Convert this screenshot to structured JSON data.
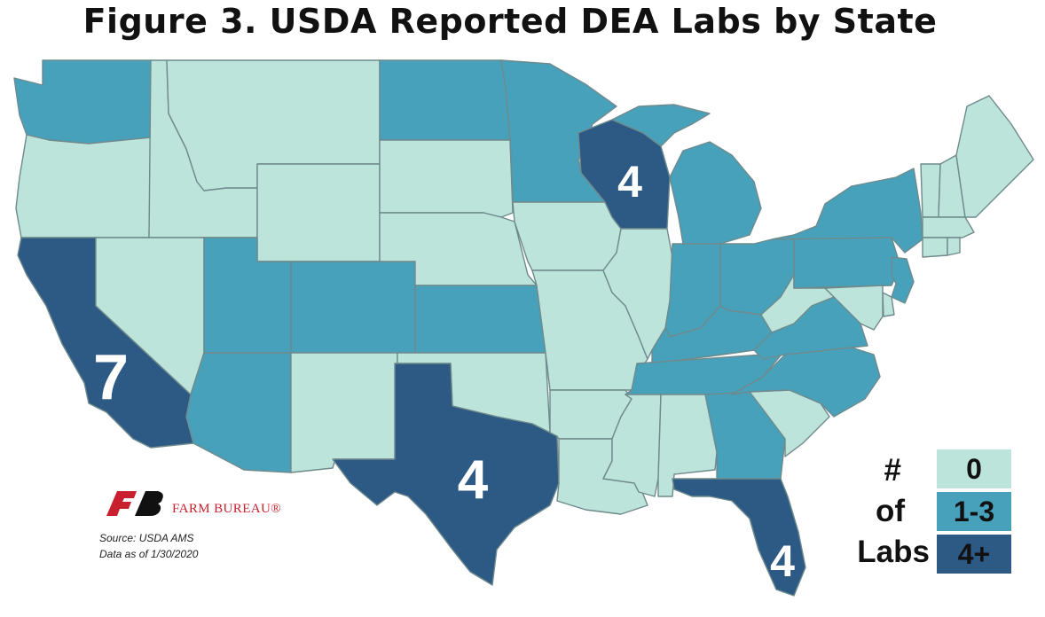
{
  "title": "Figure 3. USDA Reported DEA Labs by State",
  "colors": {
    "zero": "#bde4da",
    "one_to_three": "#47a1bb",
    "four_plus": "#2d5985",
    "border": "#6f8a8c"
  },
  "legend": {
    "title_lines": [
      "#",
      "of",
      "Labs"
    ],
    "bins": [
      {
        "label": "0",
        "category": "zero"
      },
      {
        "label": "1-3",
        "category": "one_to_three"
      },
      {
        "label": "4+",
        "category": "four_plus"
      }
    ]
  },
  "state_categories": {
    "WA": "one_to_three",
    "OR": "zero",
    "CA": "four_plus",
    "ID": "zero",
    "NV": "zero",
    "MT": "zero",
    "WY": "zero",
    "UT": "one_to_three",
    "AZ": "one_to_three",
    "CO": "one_to_three",
    "NM": "zero",
    "ND": "one_to_three",
    "SD": "zero",
    "NE": "zero",
    "KS": "one_to_three",
    "OK": "zero",
    "TX": "four_plus",
    "MN": "one_to_three",
    "IA": "zero",
    "MO": "zero",
    "AR": "zero",
    "LA": "zero",
    "WI": "four_plus",
    "IL": "zero",
    "MI": "one_to_three",
    "IN": "one_to_three",
    "OH": "one_to_three",
    "KY": "one_to_three",
    "TN": "one_to_three",
    "MS": "zero",
    "AL": "zero",
    "GA": "one_to_three",
    "FL": "four_plus",
    "SC": "zero",
    "NC": "one_to_three",
    "VA": "one_to_three",
    "WV": "zero",
    "PA": "one_to_three",
    "NY": "one_to_three",
    "NJ": "one_to_three",
    "DE": "zero",
    "MD": "zero",
    "VT": "zero",
    "NH": "zero",
    "ME": "zero",
    "MA": "zero",
    "CT": "zero",
    "RI": "zero"
  },
  "state_counts": [
    {
      "state": "CA",
      "value": "7"
    },
    {
      "state": "TX",
      "value": "4"
    },
    {
      "state": "WI",
      "value": "4"
    },
    {
      "state": "FL",
      "value": "4"
    }
  ],
  "brand": "FARM BUREAU®",
  "source_line": "Source:  USDA AMS",
  "date_line": "Data as of 1/30/2020"
}
